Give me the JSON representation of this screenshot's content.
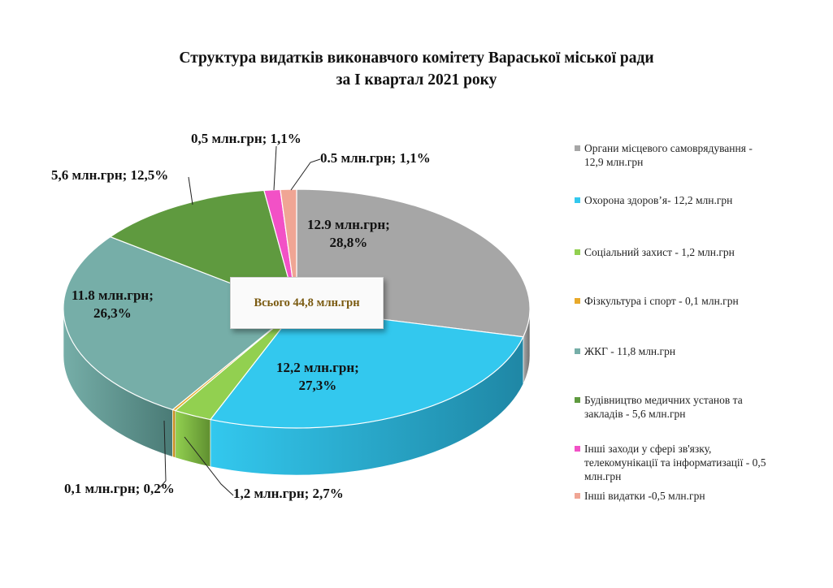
{
  "title_line1": "Структура видатків виконавчого комітету Вараської міської ради",
  "title_line2": "за І квартал 2021 року",
  "total_label": "Всього 44,8 млн.грн",
  "chart_data": {
    "type": "pie",
    "subtype": "3d-exploded-less",
    "title": "Структура видатків виконавчого комітету Вараської міської ради за І квартал 2021 року",
    "unit": "млн.грн",
    "total": 44.8,
    "legend_position": "right",
    "series": [
      {
        "name": "Органи місцевого самоврядування - 12,9 млн.грн",
        "value": 12.9,
        "percent": 28.8,
        "label_line1": "12.9  млн.грн;",
        "label_line2": "28,8%",
        "color": "#a6a6a6",
        "dark": "#6f6f6f"
      },
      {
        "name": "Охорона здоров’я- 12,2 млн.грн",
        "value": 12.2,
        "percent": 27.3,
        "label_line1": "12,2  млн.грн;",
        "label_line2": "27,3%",
        "color": "#33c8ee",
        "dark": "#1f87a5"
      },
      {
        "name": "Соціальний захист - 1,2 млн.грн",
        "value": 1.2,
        "percent": 2.7,
        "label_line1": "1,2  млн.грн; 2,7%",
        "label_line2": "",
        "color": "#92d050",
        "dark": "#5f8f30"
      },
      {
        "name": "Фізкультура і спорт -  0,1 млн.грн",
        "value": 0.1,
        "percent": 0.2,
        "label_line1": "0,1  млн.грн;  0,2%",
        "label_line2": "",
        "color": "#e8a92a",
        "dark": "#a7761a"
      },
      {
        "name": "ЖКГ - 11,8 млн.грн",
        "value": 11.8,
        "percent": 26.3,
        "label_line1": "11.8  млн.грн;",
        "label_line2": "26,3%",
        "color": "#76aea8",
        "dark": "#4a7b76"
      },
      {
        "name": "Будівництво медичних установ та закладів - 5,6 млн.грн",
        "value": 5.6,
        "percent": 12.5,
        "label_line1": "5,6 млн.грн; 12,5%",
        "label_line2": "",
        "color": "#5f9a3f",
        "dark": "#3d6a26"
      },
      {
        "name": "Інші заходи у сфері зв'язку, телекомунікації та інформатизації - 0,5 млн.грн",
        "value": 0.5,
        "percent": 1.1,
        "label_line1": "0,5 млн.грн; 1,1%",
        "label_line2": "",
        "color": "#f251c6",
        "dark": "#a83487"
      },
      {
        "name": "Інші видатки -0,5 млн.грн",
        "value": 0.5,
        "percent": 1.1,
        "label_line1": "0.5  млн.грн; 1,1%",
        "label_line2": "",
        "color": "#f0a594",
        "dark": "#b27565"
      }
    ]
  }
}
